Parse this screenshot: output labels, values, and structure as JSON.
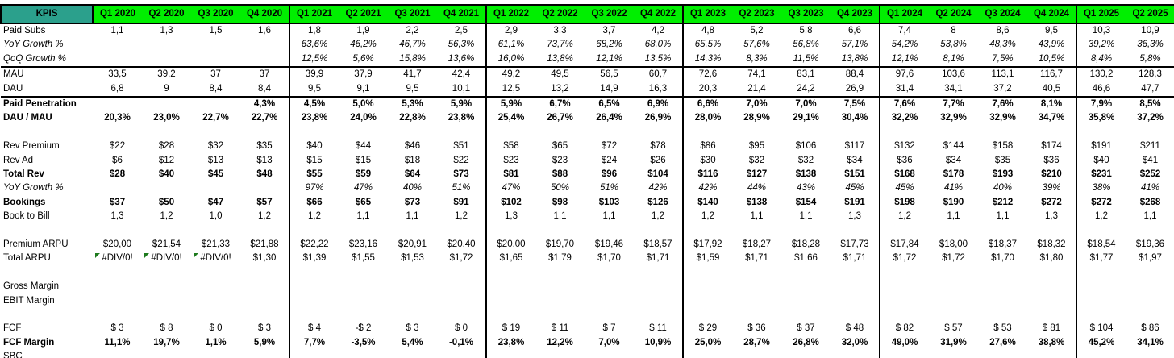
{
  "colors": {
    "kpis_header_teal": "#2BA08C",
    "quarter_header_green": "#00EF00",
    "border_black": "#000000",
    "error_indicator_green": "#1D7A1D",
    "text": "#000000"
  },
  "header": {
    "kpis_label": "KPIS",
    "quarters": [
      "Q1 2020",
      "Q2 2020",
      "Q3 2020",
      "Q4 2020",
      "Q1 2021",
      "Q2 2021",
      "Q3 2021",
      "Q4 2021",
      "Q1 2022",
      "Q2 2022",
      "Q3 2022",
      "Q4 2022",
      "Q1 2023",
      "Q2 2023",
      "Q3 2023",
      "Q4 2023",
      "Q1 2024",
      "Q2 2024",
      "Q3 2024",
      "Q4 2024",
      "Q1 2025",
      "Q2 2025"
    ]
  },
  "rows": [
    {
      "label": "Paid Subs",
      "style": "normal",
      "values": [
        "1,1",
        "1,3",
        "1,5",
        "1,6",
        "1,8",
        "1,9",
        "2,2",
        "2,5",
        "2,9",
        "3,3",
        "3,7",
        "4,2",
        "4,8",
        "5,2",
        "5,8",
        "6,6",
        "7,4",
        "8",
        "8,6",
        "9,5",
        "10,3",
        "10,9"
      ]
    },
    {
      "label": "YoY Growth %",
      "style": "italic",
      "indent": true,
      "values": [
        "",
        "",
        "",
        "",
        "63,6%",
        "46,2%",
        "46,7%",
        "56,3%",
        "61,1%",
        "73,7%",
        "68,2%",
        "68,0%",
        "65,5%",
        "57,6%",
        "56,8%",
        "57,1%",
        "54,2%",
        "53,8%",
        "48,3%",
        "43,9%",
        "39,2%",
        "36,3%"
      ]
    },
    {
      "label": "QoQ Growth %",
      "style": "italic",
      "indent": true,
      "rule_below": true,
      "values": [
        "",
        "",
        "",
        "",
        "12,5%",
        "5,6%",
        "15,8%",
        "13,6%",
        "16,0%",
        "13,8%",
        "12,1%",
        "13,5%",
        "14,3%",
        "8,3%",
        "11,5%",
        "13,8%",
        "12,1%",
        "8,1%",
        "7,5%",
        "10,5%",
        "8,4%",
        "5,8%"
      ]
    },
    {
      "label": "MAU",
      "style": "normal",
      "values": [
        "33,5",
        "39,2",
        "37",
        "37",
        "39,9",
        "37,9",
        "41,7",
        "42,4",
        "49,2",
        "49,5",
        "56,5",
        "60,7",
        "72,6",
        "74,1",
        "83,1",
        "88,4",
        "97,6",
        "103,6",
        "113,1",
        "116,7",
        "130,2",
        "128,3"
      ]
    },
    {
      "label": "DAU",
      "style": "normal",
      "rule_below": true,
      "values": [
        "6,8",
        "9",
        "8,4",
        "8,4",
        "9,5",
        "9,1",
        "9,5",
        "10,1",
        "12,5",
        "13,2",
        "14,9",
        "16,3",
        "20,3",
        "21,4",
        "24,2",
        "26,9",
        "31,4",
        "34,1",
        "37,2",
        "40,5",
        "46,6",
        "47,7"
      ]
    },
    {
      "label": "Paid Penetration",
      "style": "bold",
      "values": [
        "",
        "",
        "",
        "4,3%",
        "4,5%",
        "5,0%",
        "5,3%",
        "5,9%",
        "5,9%",
        "6,7%",
        "6,5%",
        "6,9%",
        "6,6%",
        "7,0%",
        "7,0%",
        "7,5%",
        "7,6%",
        "7,7%",
        "7,6%",
        "8,1%",
        "7,9%",
        "8,5%"
      ]
    },
    {
      "label": "DAU / MAU",
      "style": "bold",
      "values": [
        "20,3%",
        "23,0%",
        "22,7%",
        "22,7%",
        "23,8%",
        "24,0%",
        "22,8%",
        "23,8%",
        "25,4%",
        "26,7%",
        "26,4%",
        "26,9%",
        "28,0%",
        "28,9%",
        "29,1%",
        "30,4%",
        "32,2%",
        "32,9%",
        "32,9%",
        "34,7%",
        "35,8%",
        "37,2%"
      ]
    },
    {
      "label": "",
      "style": "normal",
      "values": []
    },
    {
      "label": "Rev Premium",
      "style": "normal",
      "values": [
        "$22",
        "$28",
        "$32",
        "$35",
        "$40",
        "$44",
        "$46",
        "$51",
        "$58",
        "$65",
        "$72",
        "$78",
        "$86",
        "$95",
        "$106",
        "$117",
        "$132",
        "$144",
        "$158",
        "$174",
        "$191",
        "$211"
      ]
    },
    {
      "label": "Rev Ad",
      "style": "normal",
      "values": [
        "$6",
        "$12",
        "$13",
        "$13",
        "$15",
        "$15",
        "$18",
        "$22",
        "$23",
        "$23",
        "$24",
        "$26",
        "$30",
        "$32",
        "$32",
        "$34",
        "$36",
        "$34",
        "$35",
        "$36",
        "$40",
        "$41"
      ]
    },
    {
      "label": "Total Rev",
      "style": "bold",
      "values": [
        "$28",
        "$40",
        "$45",
        "$48",
        "$55",
        "$59",
        "$64",
        "$73",
        "$81",
        "$88",
        "$96",
        "$104",
        "$116",
        "$127",
        "$138",
        "$151",
        "$168",
        "$178",
        "$193",
        "$210",
        "$231",
        "$252"
      ]
    },
    {
      "label": "YoY Growth %",
      "style": "italic",
      "indent": true,
      "values": [
        "",
        "",
        "",
        "",
        "97%",
        "47%",
        "40%",
        "51%",
        "47%",
        "50%",
        "51%",
        "42%",
        "42%",
        "44%",
        "43%",
        "45%",
        "45%",
        "41%",
        "40%",
        "39%",
        "38%",
        "41%"
      ]
    },
    {
      "label": "Bookings",
      "style": "bold",
      "values": [
        "$37",
        "$50",
        "$47",
        "$57",
        "$66",
        "$65",
        "$73",
        "$91",
        "$102",
        "$98",
        "$103",
        "$126",
        "$140",
        "$138",
        "$154",
        "$191",
        "$198",
        "$190",
        "$212",
        "$272",
        "$272",
        "$268"
      ]
    },
    {
      "label": "Book to Bill",
      "style": "normal",
      "values": [
        "1,3",
        "1,2",
        "1,0",
        "1,2",
        "1,2",
        "1,1",
        "1,1",
        "1,2",
        "1,3",
        "1,1",
        "1,1",
        "1,2",
        "1,2",
        "1,1",
        "1,1",
        "1,3",
        "1,2",
        "1,1",
        "1,1",
        "1,3",
        "1,2",
        "1,1"
      ]
    },
    {
      "label": "",
      "style": "normal",
      "values": []
    },
    {
      "label": "Premium ARPU",
      "style": "normal",
      "values": [
        "$20,00",
        "$21,54",
        "$21,33",
        "$21,88",
        "$22,22",
        "$23,16",
        "$20,91",
        "$20,40",
        "$20,00",
        "$19,70",
        "$19,46",
        "$18,57",
        "$17,92",
        "$18,27",
        "$18,28",
        "$17,73",
        "$17,84",
        "$18,00",
        "$18,37",
        "$18,32",
        "$18,54",
        "$19,36"
      ]
    },
    {
      "label": "Total ARPU",
      "style": "normal",
      "values": [
        "#DIV/0!",
        "#DIV/0!",
        "#DIV/0!",
        "$1,30",
        "$1,39",
        "$1,55",
        "$1,53",
        "$1,72",
        "$1,65",
        "$1,79",
        "$1,70",
        "$1,71",
        "$1,59",
        "$1,71",
        "$1,66",
        "$1,71",
        "$1,72",
        "$1,72",
        "$1,70",
        "$1,80",
        "$1,77",
        "$1,97"
      ]
    },
    {
      "label": "",
      "style": "normal",
      "values": []
    },
    {
      "label": "Gross Margin",
      "style": "normal",
      "values": []
    },
    {
      "label": "EBIT Margin",
      "style": "normal",
      "values": []
    },
    {
      "label": "",
      "style": "normal",
      "values": []
    },
    {
      "label": "FCF",
      "style": "normal",
      "values": [
        "$ 3",
        "$ 8",
        "$ 0",
        "$ 3",
        "$ 4",
        "-$ 2",
        "$ 3",
        "$ 0",
        "$ 19",
        "$ 11",
        "$ 7",
        "$ 11",
        "$ 29",
        "$ 36",
        "$ 37",
        "$ 48",
        "$ 82",
        "$ 57",
        "$ 53",
        "$ 81",
        "$ 104",
        "$ 86"
      ]
    },
    {
      "label": "FCF Margin",
      "style": "bold",
      "values": [
        "11,1%",
        "19,7%",
        "1,1%",
        "5,9%",
        "7,7%",
        "-3,5%",
        "5,4%",
        "-0,1%",
        "23,8%",
        "12,2%",
        "7,0%",
        "10,9%",
        "25,0%",
        "28,7%",
        "26,8%",
        "32,0%",
        "49,0%",
        "31,9%",
        "27,6%",
        "38,8%",
        "45,2%",
        "34,1%"
      ]
    },
    {
      "label": "SBC",
      "style": "normal",
      "values": []
    }
  ],
  "error_value": "#DIV/0!"
}
